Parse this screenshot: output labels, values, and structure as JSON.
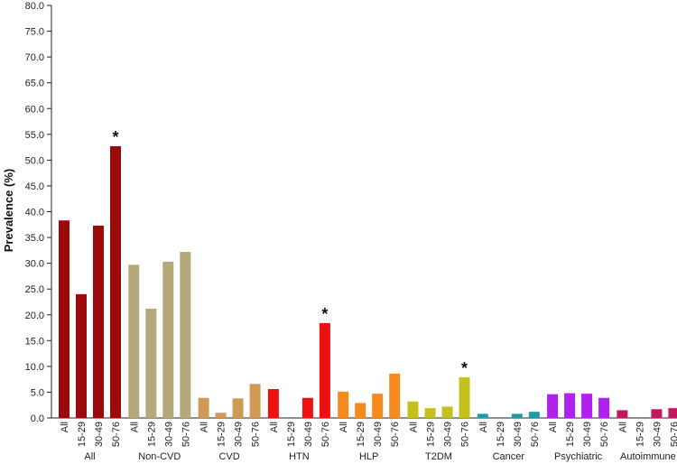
{
  "chart_data": {
    "type": "bar",
    "ylabel": "Prevalence (%)",
    "ylim": [
      0,
      80
    ],
    "ytick_labels": [
      "0.0",
      "5.0",
      "10.0",
      "15.0",
      "20.0",
      "25.0",
      "30.0",
      "35.0",
      "40.0",
      "45.0",
      "50.0",
      "55.0",
      "60.0",
      "65.0",
      "70.0",
      "75.0",
      "80.0"
    ],
    "subcategories": [
      "All",
      "15-29",
      "30-49",
      "50-76"
    ],
    "groups": [
      {
        "name": "All",
        "color": "#9B0A0A",
        "values": [
          38.3,
          24.0,
          37.3,
          52.7
        ],
        "significant": [
          false,
          false,
          false,
          true
        ]
      },
      {
        "name": "Non-CVD",
        "color": "#B5A87A",
        "values": [
          29.7,
          21.2,
          30.3,
          32.2
        ],
        "significant": [
          false,
          false,
          false,
          false
        ]
      },
      {
        "name": "CVD",
        "color": "#D09A55",
        "values": [
          3.9,
          1.0,
          3.8,
          6.6
        ],
        "significant": [
          false,
          false,
          false,
          false
        ]
      },
      {
        "name": "HTN",
        "color": "#EE1111",
        "values": [
          5.6,
          0.0,
          3.9,
          18.4
        ],
        "significant": [
          false,
          false,
          false,
          true
        ]
      },
      {
        "name": "HLP",
        "color": "#F58A1F",
        "values": [
          5.1,
          2.9,
          4.7,
          8.6
        ],
        "significant": [
          false,
          false,
          false,
          false
        ]
      },
      {
        "name": "T2DM",
        "color": "#C5C01A",
        "values": [
          3.2,
          1.9,
          2.2,
          7.9
        ],
        "significant": [
          false,
          false,
          false,
          true
        ]
      },
      {
        "name": "Cancer",
        "color": "#1E9AAA",
        "values": [
          0.8,
          0.0,
          0.8,
          1.2
        ],
        "significant": [
          false,
          false,
          false,
          false
        ]
      },
      {
        "name": "Psychiatric",
        "color": "#B020EE",
        "values": [
          4.6,
          4.8,
          4.7,
          3.9
        ],
        "significant": [
          false,
          false,
          false,
          false
        ]
      },
      {
        "name": "Autoimmune",
        "color": "#C2175F",
        "values": [
          1.5,
          0.0,
          1.7,
          1.9
        ],
        "significant": [
          false,
          false,
          false,
          false
        ]
      }
    ],
    "significance_marker": "*",
    "grid": false,
    "legend": "none"
  }
}
